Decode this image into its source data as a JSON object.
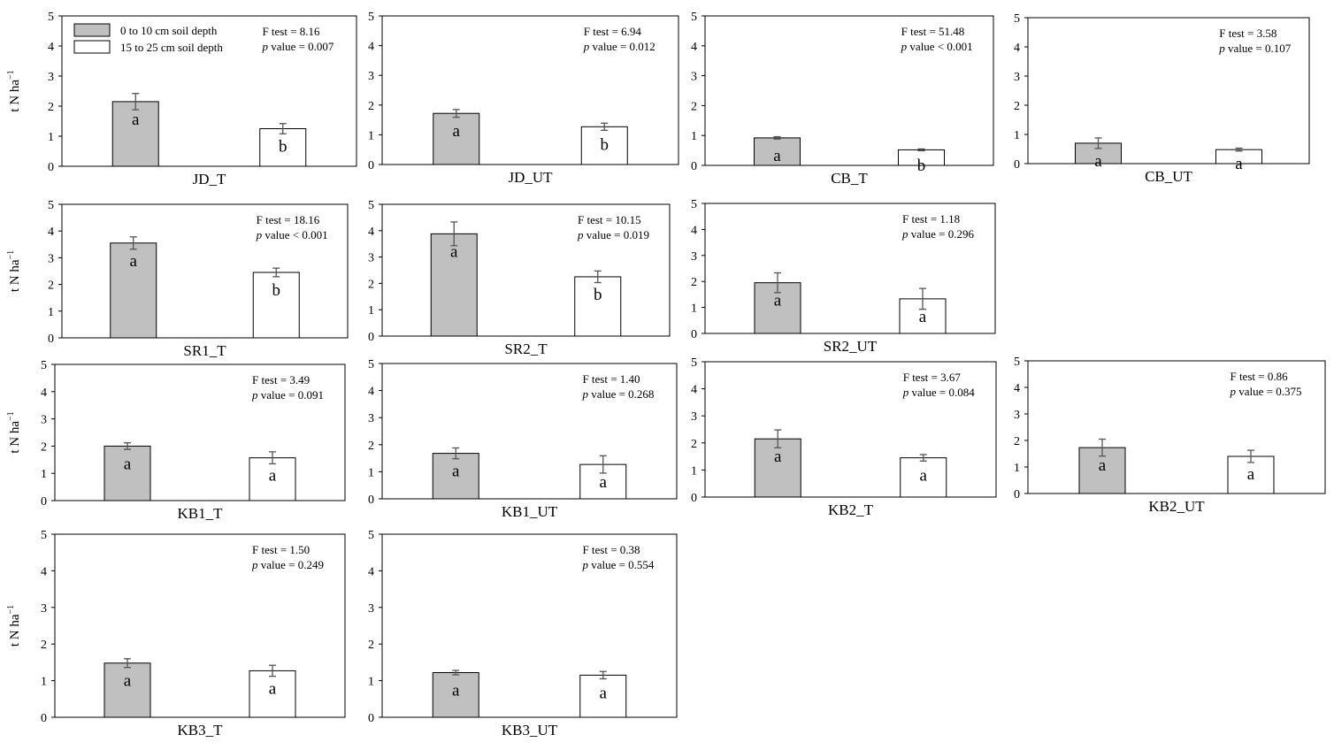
{
  "legend": {
    "items": [
      {
        "label": "0 to 10 cm soil depth",
        "color": "#c0c0c0"
      },
      {
        "label": "15 to 25 cm soil depth",
        "color": "#ffffff"
      }
    ]
  },
  "ylabel": "t N ha",
  "ylabel_sup": "−1",
  "f_prefix": "F test = ",
  "p_italic": "p",
  "p_rest": " value",
  "chart_data": [
    {
      "type": "bar",
      "title": "JD_T",
      "ylim": [
        0,
        5
      ],
      "yticks": [
        0,
        1,
        2,
        3,
        4,
        5
      ],
      "categories": [
        "0 to 10 cm soil depth",
        "15 to 25 cm soil depth"
      ],
      "values": [
        2.15,
        1.25
      ],
      "errors": [
        0.27,
        0.17
      ],
      "letters": [
        "a",
        "b"
      ],
      "f_value": "8.16",
      "p_value": "= 0.007"
    },
    {
      "type": "bar",
      "title": "JD_UT",
      "ylim": [
        0,
        5
      ],
      "yticks": [
        0,
        1,
        2,
        3,
        4,
        5
      ],
      "categories": [
        "0 to 10 cm soil depth",
        "15 to 25 cm soil depth"
      ],
      "values": [
        1.72,
        1.27
      ],
      "errors": [
        0.13,
        0.12
      ],
      "letters": [
        "a",
        "b"
      ],
      "f_value": "6.94",
      "p_value": "= 0.012"
    },
    {
      "type": "bar",
      "title": "CB_T",
      "ylim": [
        0,
        5
      ],
      "yticks": [
        0,
        1,
        2,
        3,
        4,
        5
      ],
      "categories": [
        "0 to 10 cm soil depth",
        "15 to 25 cm soil depth"
      ],
      "values": [
        0.92,
        0.52
      ],
      "errors": [
        0.04,
        0.03
      ],
      "letters": [
        "a",
        "b"
      ],
      "f_value": "51.48",
      "p_value": "< 0.001"
    },
    {
      "type": "bar",
      "title": "CB_UT",
      "ylim": [
        0,
        5
      ],
      "yticks": [
        0,
        1,
        2,
        3,
        4,
        5
      ],
      "categories": [
        "0 to 10 cm soil depth",
        "15 to 25 cm soil depth"
      ],
      "values": [
        0.7,
        0.48
      ],
      "errors": [
        0.18,
        0.05
      ],
      "letters": [
        "a",
        "a"
      ],
      "f_value": "3.58",
      "p_value": "= 0.107"
    },
    {
      "type": "bar",
      "title": "SR1_T",
      "ylim": [
        0,
        5
      ],
      "yticks": [
        0,
        1,
        2,
        3,
        4,
        5
      ],
      "categories": [
        "0 to 10 cm soil depth",
        "15 to 25 cm soil depth"
      ],
      "values": [
        3.55,
        2.45
      ],
      "errors": [
        0.23,
        0.16
      ],
      "letters": [
        "a",
        "b"
      ],
      "f_value": "18.16",
      "p_value": "< 0.001"
    },
    {
      "type": "bar",
      "title": "SR2_T",
      "ylim": [
        0,
        5
      ],
      "yticks": [
        0,
        1,
        2,
        3,
        4,
        5
      ],
      "categories": [
        "0 to 10 cm soil depth",
        "15 to 25 cm soil depth"
      ],
      "values": [
        3.88,
        2.25
      ],
      "errors": [
        0.45,
        0.22
      ],
      "letters": [
        "a",
        "b"
      ],
      "f_value": "10.15",
      "p_value": "= 0.019"
    },
    {
      "type": "bar",
      "title": "SR2_UT",
      "ylim": [
        0,
        5
      ],
      "yticks": [
        0,
        1,
        2,
        3,
        4,
        5
      ],
      "categories": [
        "0 to 10 cm soil depth",
        "15 to 25 cm soil depth"
      ],
      "values": [
        1.95,
        1.33
      ],
      "errors": [
        0.38,
        0.4
      ],
      "letters": [
        "a",
        "a"
      ],
      "f_value": "1.18",
      "p_value": "= 0.296"
    },
    {
      "type": "bar",
      "title": "KB1_T",
      "ylim": [
        0,
        5
      ],
      "yticks": [
        0,
        1,
        2,
        3,
        4,
        5
      ],
      "categories": [
        "0 to 10 cm soil depth",
        "15 to 25 cm soil depth"
      ],
      "values": [
        2.0,
        1.57
      ],
      "errors": [
        0.12,
        0.22
      ],
      "letters": [
        "a",
        "a"
      ],
      "f_value": "3.49",
      "p_value": "= 0.091"
    },
    {
      "type": "bar",
      "title": "KB1_UT",
      "ylim": [
        0,
        5
      ],
      "yticks": [
        0,
        1,
        2,
        3,
        4,
        5
      ],
      "categories": [
        "0 to 10 cm soil depth",
        "15 to 25 cm soil depth"
      ],
      "values": [
        1.68,
        1.27
      ],
      "errors": [
        0.2,
        0.32
      ],
      "letters": [
        "a",
        "a"
      ],
      "f_value": "1.40",
      "p_value": "= 0.268"
    },
    {
      "type": "bar",
      "title": "KB2_T",
      "ylim": [
        0,
        5
      ],
      "yticks": [
        0,
        1,
        2,
        3,
        4,
        5
      ],
      "categories": [
        "0 to 10 cm soil depth",
        "15 to 25 cm soil depth"
      ],
      "values": [
        2.15,
        1.45
      ],
      "errors": [
        0.33,
        0.12
      ],
      "letters": [
        "a",
        "a"
      ],
      "f_value": "3.67",
      "p_value": "= 0.084"
    },
    {
      "type": "bar",
      "title": "KB2_UT",
      "ylim": [
        0,
        5
      ],
      "yticks": [
        0,
        1,
        2,
        3,
        4,
        5
      ],
      "categories": [
        "0 to 10 cm soil depth",
        "15 to 25 cm soil depth"
      ],
      "values": [
        1.73,
        1.4
      ],
      "errors": [
        0.32,
        0.23
      ],
      "letters": [
        "a",
        "a"
      ],
      "f_value": "0.86",
      "p_value": "= 0.375"
    },
    {
      "type": "bar",
      "title": "KB3_T",
      "ylim": [
        0,
        5
      ],
      "yticks": [
        0,
        1,
        2,
        3,
        4,
        5
      ],
      "categories": [
        "0 to 10 cm soil depth",
        "15 to 25 cm soil depth"
      ],
      "values": [
        1.48,
        1.27
      ],
      "errors": [
        0.12,
        0.15
      ],
      "letters": [
        "a",
        "a"
      ],
      "f_value": "1.50",
      "p_value": "= 0.249"
    },
    {
      "type": "bar",
      "title": "KB3_UT",
      "ylim": [
        0,
        5
      ],
      "yticks": [
        0,
        1,
        2,
        3,
        4,
        5
      ],
      "categories": [
        "0 to 10 cm soil depth",
        "15 to 25 cm soil depth"
      ],
      "values": [
        1.22,
        1.15
      ],
      "errors": [
        0.06,
        0.1
      ],
      "letters": [
        "a",
        "a"
      ],
      "f_value": "0.38",
      "p_value": "= 0.554"
    }
  ]
}
